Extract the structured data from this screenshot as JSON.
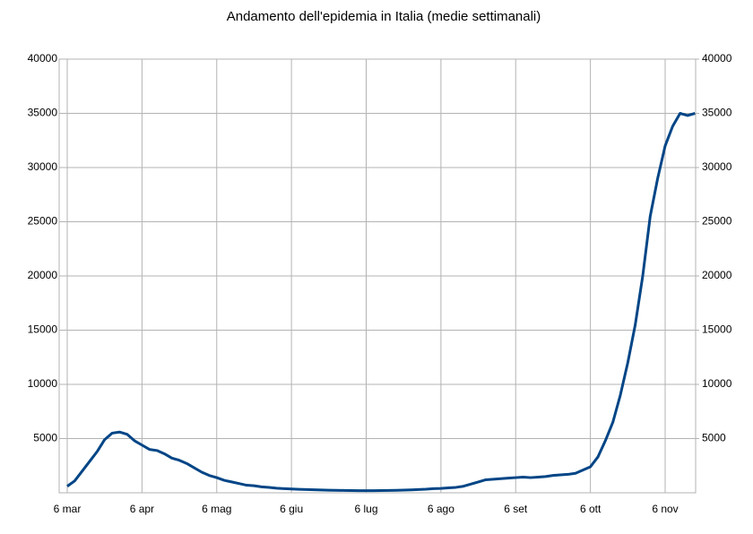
{
  "chart_data": {
    "type": "line",
    "title": "Andamento dell'epidemia in Italia (medie settimanali)",
    "categories": [
      "6 mar",
      null,
      null,
      null,
      null,
      null,
      null,
      null,
      null,
      null,
      "6 apr",
      null,
      null,
      null,
      null,
      null,
      null,
      null,
      null,
      null,
      "6 mag",
      null,
      null,
      null,
      null,
      null,
      null,
      null,
      null,
      null,
      "6 giu",
      null,
      null,
      null,
      null,
      null,
      null,
      null,
      null,
      null,
      "6 lug",
      null,
      null,
      null,
      null,
      null,
      null,
      null,
      null,
      null,
      "6 ago",
      null,
      null,
      null,
      null,
      null,
      null,
      null,
      null,
      null,
      "6 set",
      null,
      null,
      null,
      null,
      null,
      null,
      null,
      null,
      null,
      "6 ott",
      null,
      null,
      null,
      null,
      null,
      null,
      null,
      null,
      null,
      "6 nov",
      null,
      null,
      null,
      null
    ],
    "series": [
      {
        "color": "#004586",
        "values": [
          600,
          1100,
          2000,
          2900,
          3800,
          4900,
          5500,
          5600,
          5400,
          4800,
          4400,
          4000,
          3900,
          3600,
          3200,
          3000,
          2700,
          2300,
          1900,
          1600,
          1400,
          1150,
          1000,
          850,
          700,
          650,
          550,
          500,
          420,
          380,
          350,
          320,
          300,
          280,
          260,
          240,
          230,
          220,
          210,
          200,
          200,
          200,
          210,
          220,
          230,
          250,
          270,
          300,
          330,
          380,
          400,
          450,
          500,
          600,
          800,
          1000,
          1200,
          1250,
          1300,
          1350,
          1400,
          1450,
          1400,
          1450,
          1500,
          1600,
          1650,
          1700,
          1800,
          2100,
          2400,
          3300,
          4800,
          6500,
          9000,
          12000,
          15500,
          20000,
          25500,
          29000,
          32000,
          33800,
          35000,
          34800,
          35000
        ]
      }
    ],
    "ylim": [
      0,
      40000
    ],
    "yticks": [
      5000,
      10000,
      15000,
      20000,
      25000,
      30000,
      35000,
      40000
    ],
    "y2lim": [
      0,
      40000
    ],
    "y2ticks": [
      5000,
      10000,
      15000,
      20000,
      25000,
      30000,
      35000,
      40000
    ],
    "grid": true
  }
}
